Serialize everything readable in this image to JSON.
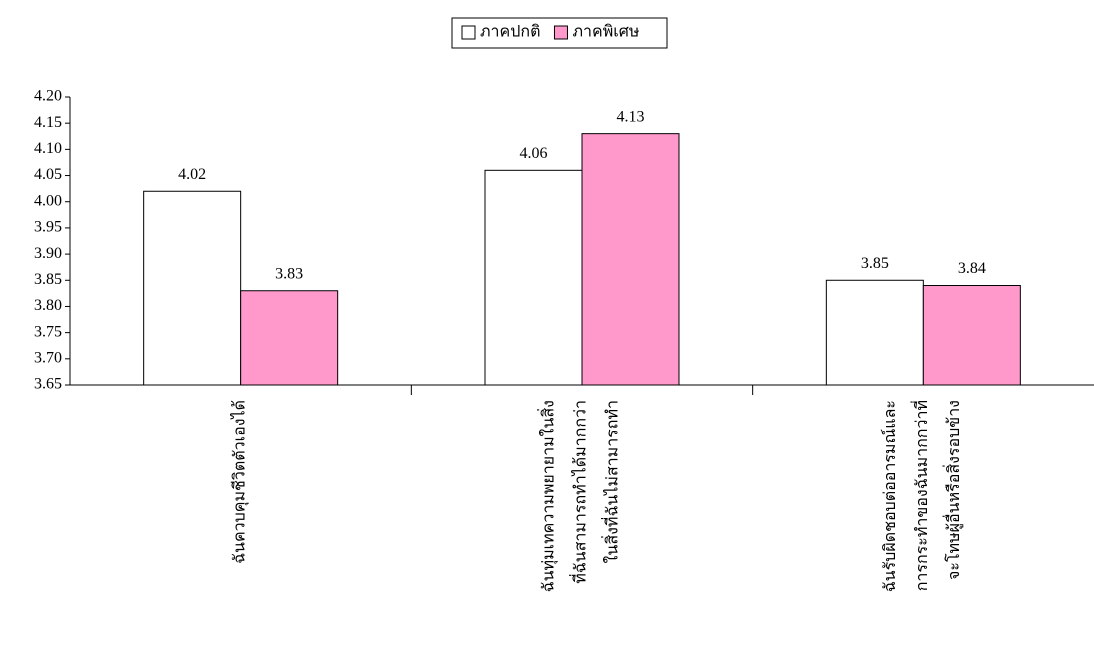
{
  "chart_data": {
    "type": "bar",
    "categories": [
      [
        "ฉันควบคุมชีวิตตัวเองได้"
      ],
      [
        "ฉันทุ่มเทความพยายามในสิ่ง",
        "ที่ฉันสามารถทำได้มากกว่า",
        "ในสิ่งที่ฉันไม่สามารถทำ"
      ],
      [
        "ฉันรับผิดชอบต่ออารมณ์และ",
        "การกระทำของฉันมากกว่าที่",
        "จะโทษผู้อื่นหรือสิ่งรอบข้าง"
      ]
    ],
    "series": [
      {
        "name": "ภาคปกติ",
        "color": "#ffffff",
        "values": [
          4.02,
          4.06,
          3.85
        ]
      },
      {
        "name": "ภาคพิเศษ",
        "color": "#ff99cc",
        "values": [
          3.83,
          4.13,
          3.84
        ]
      }
    ],
    "ylim": [
      3.65,
      4.2
    ],
    "yticks": [
      3.65,
      {
        "value": 3.7,
        "label": "3.70"
      },
      3.75,
      {
        "value": 3.8,
        "label": "3.80"
      },
      3.85,
      {
        "value": 3.9,
        "label": "3.90"
      },
      3.95,
      {
        "value": 4.0,
        "label": "4.00"
      },
      4.05,
      {
        "value": 4.1,
        "label": "4.10"
      },
      4.15,
      {
        "value": 4.2,
        "label": "4.20"
      }
    ],
    "legend": "top"
  }
}
